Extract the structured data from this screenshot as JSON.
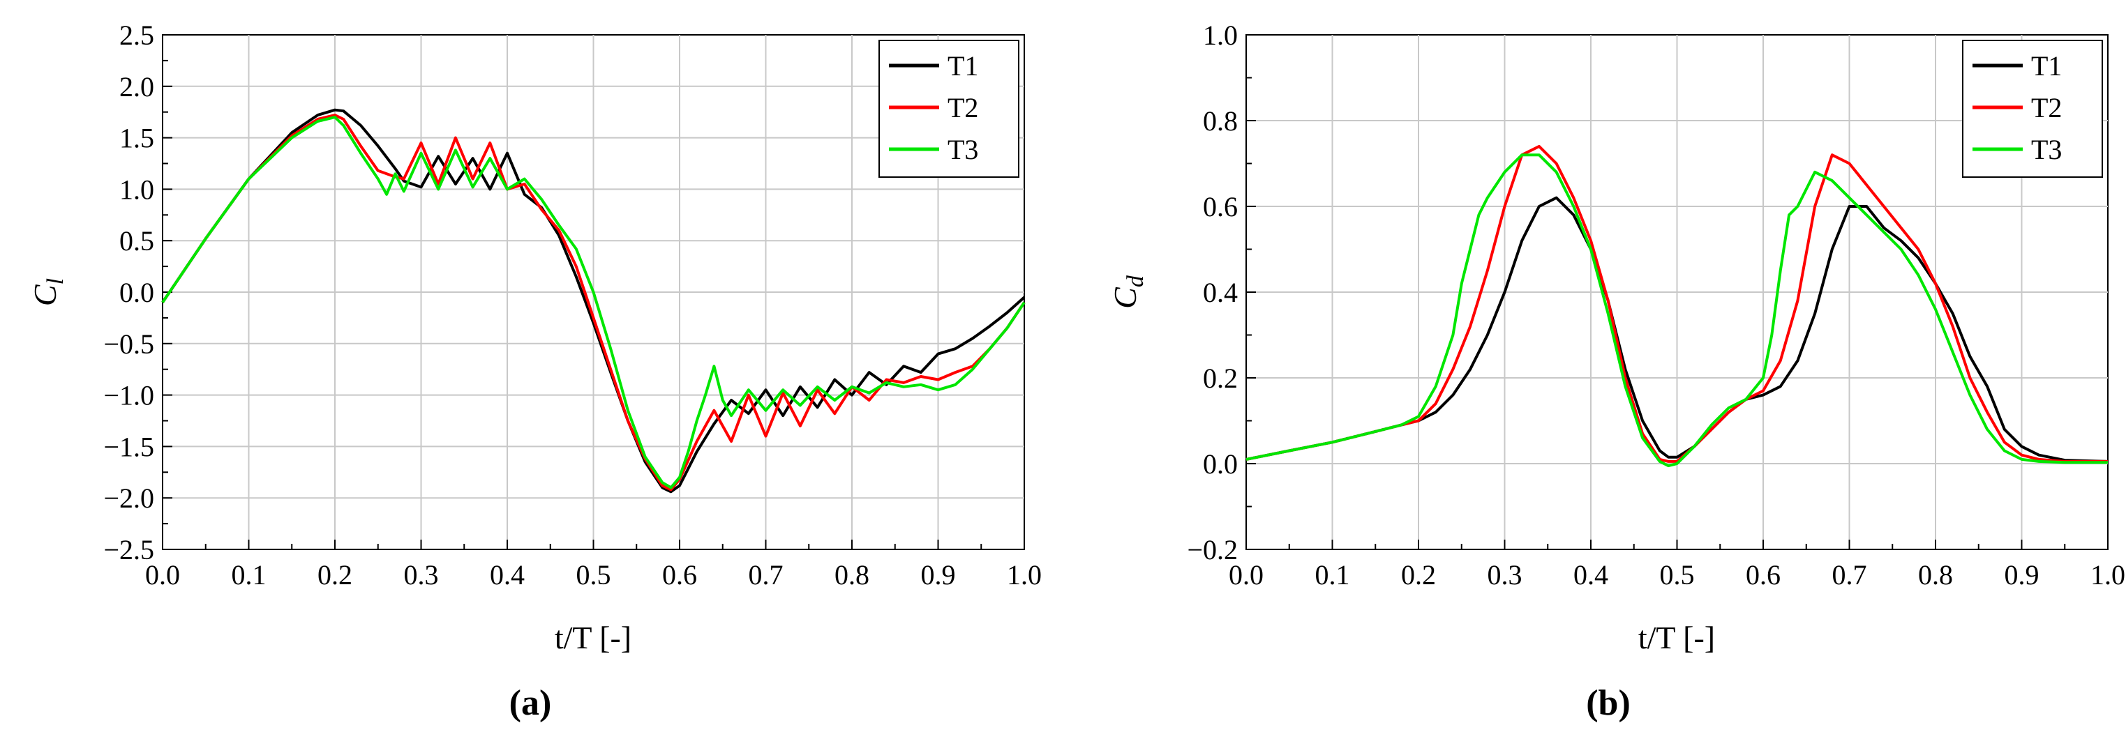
{
  "figure": {
    "captions": [
      "(a)",
      "(b)"
    ]
  },
  "chart_data": [
    {
      "type": "line",
      "panel_label": "a",
      "xlabel": "t/T [-]",
      "ylabel_main": "C",
      "ylabel_sub": "l",
      "xlim": [
        0.0,
        1.0
      ],
      "ylim": [
        -2.5,
        2.5
      ],
      "xticks": [
        0.0,
        0.1,
        0.2,
        0.3,
        0.4,
        0.5,
        0.6,
        0.7,
        0.8,
        0.9,
        1.0
      ],
      "xtick_labels": [
        "0.0",
        "0.1",
        "0.2",
        "0.3",
        "0.4",
        "0.5",
        "0.6",
        "0.7",
        "0.8",
        "0.9",
        "1.0"
      ],
      "yticks": [
        -2.5,
        -2.0,
        -1.5,
        -1.0,
        -0.5,
        0.0,
        0.5,
        1.0,
        1.5,
        2.0,
        2.5
      ],
      "ytick_labels": [
        "−2.5",
        "−2.0",
        "−1.5",
        "−1.0",
        "−0.5",
        "0.0",
        "0.5",
        "1.0",
        "1.5",
        "2.0",
        "2.5"
      ],
      "grid": true,
      "legend_position": "top-right",
      "series": [
        {
          "name": "T1",
          "color": "#000000",
          "x": [
            0.0,
            0.05,
            0.1,
            0.15,
            0.18,
            0.2,
            0.21,
            0.23,
            0.25,
            0.27,
            0.28,
            0.3,
            0.32,
            0.34,
            0.36,
            0.38,
            0.4,
            0.42,
            0.44,
            0.46,
            0.48,
            0.5,
            0.52,
            0.54,
            0.56,
            0.58,
            0.59,
            0.6,
            0.62,
            0.64,
            0.66,
            0.68,
            0.7,
            0.72,
            0.74,
            0.76,
            0.78,
            0.8,
            0.82,
            0.84,
            0.86,
            0.88,
            0.9,
            0.92,
            0.94,
            0.96,
            0.98,
            1.0
          ],
          "y": [
            -0.1,
            0.52,
            1.1,
            1.55,
            1.72,
            1.77,
            1.76,
            1.62,
            1.42,
            1.2,
            1.08,
            1.02,
            1.32,
            1.05,
            1.3,
            1.0,
            1.35,
            0.95,
            0.82,
            0.55,
            0.15,
            -0.3,
            -0.78,
            -1.25,
            -1.65,
            -1.9,
            -1.94,
            -1.88,
            -1.55,
            -1.28,
            -1.05,
            -1.18,
            -0.95,
            -1.2,
            -0.92,
            -1.12,
            -0.85,
            -1.0,
            -0.78,
            -0.9,
            -0.72,
            -0.78,
            -0.6,
            -0.55,
            -0.45,
            -0.33,
            -0.2,
            -0.05
          ]
        },
        {
          "name": "T2",
          "color": "#ff0000",
          "x": [
            0.0,
            0.05,
            0.1,
            0.15,
            0.18,
            0.2,
            0.21,
            0.23,
            0.25,
            0.27,
            0.28,
            0.3,
            0.32,
            0.34,
            0.36,
            0.38,
            0.4,
            0.42,
            0.44,
            0.46,
            0.48,
            0.5,
            0.52,
            0.54,
            0.56,
            0.58,
            0.59,
            0.6,
            0.62,
            0.64,
            0.66,
            0.68,
            0.7,
            0.72,
            0.74,
            0.76,
            0.78,
            0.8,
            0.82,
            0.84,
            0.86,
            0.88,
            0.9,
            0.92,
            0.94,
            0.96,
            0.98,
            1.0
          ],
          "y": [
            -0.1,
            0.52,
            1.1,
            1.52,
            1.68,
            1.72,
            1.68,
            1.42,
            1.18,
            1.12,
            1.1,
            1.45,
            1.05,
            1.5,
            1.1,
            1.45,
            1.0,
            1.05,
            0.8,
            0.6,
            0.25,
            -0.25,
            -0.75,
            -1.25,
            -1.62,
            -1.88,
            -1.92,
            -1.82,
            -1.45,
            -1.15,
            -1.45,
            -1.0,
            -1.4,
            -0.98,
            -1.3,
            -0.95,
            -1.18,
            -0.92,
            -1.05,
            -0.85,
            -0.88,
            -0.82,
            -0.85,
            -0.78,
            -0.72,
            -0.55,
            -0.35,
            -0.1
          ]
        },
        {
          "name": "T3",
          "color": "#00e600",
          "x": [
            0.0,
            0.05,
            0.1,
            0.15,
            0.18,
            0.2,
            0.21,
            0.23,
            0.25,
            0.26,
            0.27,
            0.28,
            0.3,
            0.32,
            0.34,
            0.36,
            0.38,
            0.4,
            0.42,
            0.44,
            0.46,
            0.48,
            0.5,
            0.52,
            0.54,
            0.56,
            0.58,
            0.59,
            0.6,
            0.61,
            0.62,
            0.63,
            0.64,
            0.65,
            0.66,
            0.68,
            0.7,
            0.72,
            0.74,
            0.76,
            0.78,
            0.8,
            0.82,
            0.84,
            0.86,
            0.88,
            0.9,
            0.92,
            0.94,
            0.96,
            0.98,
            1.0
          ],
          "y": [
            -0.1,
            0.52,
            1.1,
            1.5,
            1.66,
            1.7,
            1.62,
            1.35,
            1.1,
            0.95,
            1.15,
            0.98,
            1.35,
            1.0,
            1.38,
            1.02,
            1.3,
            1.0,
            1.1,
            0.9,
            0.65,
            0.42,
            0.0,
            -0.55,
            -1.15,
            -1.6,
            -1.85,
            -1.9,
            -1.8,
            -1.55,
            -1.25,
            -1.0,
            -0.72,
            -1.05,
            -1.2,
            -0.95,
            -1.15,
            -0.95,
            -1.1,
            -0.92,
            -1.05,
            -0.92,
            -0.98,
            -0.88,
            -0.92,
            -0.9,
            -0.95,
            -0.9,
            -0.75,
            -0.55,
            -0.35,
            -0.1
          ]
        }
      ]
    },
    {
      "type": "line",
      "panel_label": "b",
      "xlabel": "t/T [-]",
      "ylabel_main": "C",
      "ylabel_sub": "d",
      "xlim": [
        0.0,
        1.0
      ],
      "ylim": [
        -0.2,
        1.0
      ],
      "xticks": [
        0.0,
        0.1,
        0.2,
        0.3,
        0.4,
        0.5,
        0.6,
        0.7,
        0.8,
        0.9,
        1.0
      ],
      "xtick_labels": [
        "0.0",
        "0.1",
        "0.2",
        "0.3",
        "0.4",
        "0.5",
        "0.6",
        "0.7",
        "0.8",
        "0.9",
        "1.0"
      ],
      "yticks": [
        -0.2,
        0.0,
        0.2,
        0.4,
        0.6,
        0.8,
        1.0
      ],
      "ytick_labels": [
        "−0.2",
        "0.0",
        "0.2",
        "0.4",
        "0.6",
        "0.8",
        "1.0"
      ],
      "grid": true,
      "legend_position": "top-right",
      "series": [
        {
          "name": "T1",
          "color": "#000000",
          "x": [
            0.0,
            0.05,
            0.1,
            0.15,
            0.18,
            0.2,
            0.22,
            0.24,
            0.26,
            0.28,
            0.3,
            0.32,
            0.34,
            0.36,
            0.38,
            0.4,
            0.42,
            0.44,
            0.46,
            0.48,
            0.49,
            0.5,
            0.52,
            0.54,
            0.56,
            0.58,
            0.6,
            0.62,
            0.64,
            0.66,
            0.68,
            0.7,
            0.72,
            0.74,
            0.76,
            0.78,
            0.8,
            0.82,
            0.84,
            0.86,
            0.88,
            0.9,
            0.92,
            0.95,
            1.0
          ],
          "y": [
            0.01,
            0.03,
            0.05,
            0.075,
            0.09,
            0.1,
            0.12,
            0.16,
            0.22,
            0.3,
            0.4,
            0.52,
            0.6,
            0.62,
            0.58,
            0.5,
            0.38,
            0.22,
            0.1,
            0.03,
            0.015,
            0.015,
            0.04,
            0.08,
            0.12,
            0.15,
            0.16,
            0.18,
            0.24,
            0.35,
            0.5,
            0.6,
            0.6,
            0.55,
            0.52,
            0.48,
            0.42,
            0.35,
            0.25,
            0.18,
            0.08,
            0.04,
            0.02,
            0.008,
            0.005
          ]
        },
        {
          "name": "T2",
          "color": "#ff0000",
          "x": [
            0.0,
            0.05,
            0.1,
            0.15,
            0.18,
            0.2,
            0.22,
            0.24,
            0.26,
            0.28,
            0.3,
            0.32,
            0.34,
            0.36,
            0.38,
            0.4,
            0.42,
            0.44,
            0.46,
            0.48,
            0.49,
            0.5,
            0.52,
            0.54,
            0.56,
            0.58,
            0.6,
            0.62,
            0.64,
            0.66,
            0.68,
            0.7,
            0.72,
            0.74,
            0.76,
            0.78,
            0.8,
            0.82,
            0.84,
            0.86,
            0.88,
            0.9,
            0.92,
            0.95,
            1.0
          ],
          "y": [
            0.01,
            0.03,
            0.05,
            0.075,
            0.09,
            0.1,
            0.14,
            0.22,
            0.32,
            0.45,
            0.6,
            0.72,
            0.74,
            0.7,
            0.62,
            0.52,
            0.38,
            0.2,
            0.07,
            0.01,
            0.005,
            0.005,
            0.04,
            0.08,
            0.12,
            0.15,
            0.17,
            0.24,
            0.38,
            0.6,
            0.72,
            0.7,
            0.65,
            0.6,
            0.55,
            0.5,
            0.42,
            0.32,
            0.2,
            0.12,
            0.05,
            0.02,
            0.01,
            0.005,
            0.005
          ]
        },
        {
          "name": "T3",
          "color": "#00e600",
          "x": [
            0.0,
            0.05,
            0.1,
            0.15,
            0.18,
            0.2,
            0.22,
            0.24,
            0.25,
            0.26,
            0.27,
            0.28,
            0.3,
            0.32,
            0.34,
            0.36,
            0.38,
            0.4,
            0.42,
            0.44,
            0.46,
            0.48,
            0.49,
            0.5,
            0.52,
            0.54,
            0.56,
            0.58,
            0.6,
            0.61,
            0.62,
            0.63,
            0.64,
            0.66,
            0.68,
            0.7,
            0.72,
            0.74,
            0.76,
            0.78,
            0.8,
            0.82,
            0.84,
            0.86,
            0.88,
            0.9,
            0.92,
            0.95,
            1.0
          ],
          "y": [
            0.01,
            0.03,
            0.05,
            0.075,
            0.09,
            0.11,
            0.18,
            0.3,
            0.42,
            0.5,
            0.58,
            0.62,
            0.68,
            0.72,
            0.72,
            0.68,
            0.6,
            0.5,
            0.35,
            0.18,
            0.06,
            0.005,
            -0.005,
            0.0,
            0.04,
            0.09,
            0.13,
            0.15,
            0.2,
            0.3,
            0.45,
            0.58,
            0.6,
            0.68,
            0.66,
            0.62,
            0.58,
            0.54,
            0.5,
            0.44,
            0.36,
            0.26,
            0.16,
            0.08,
            0.03,
            0.01,
            0.005,
            0.003,
            0.003
          ]
        }
      ]
    }
  ]
}
